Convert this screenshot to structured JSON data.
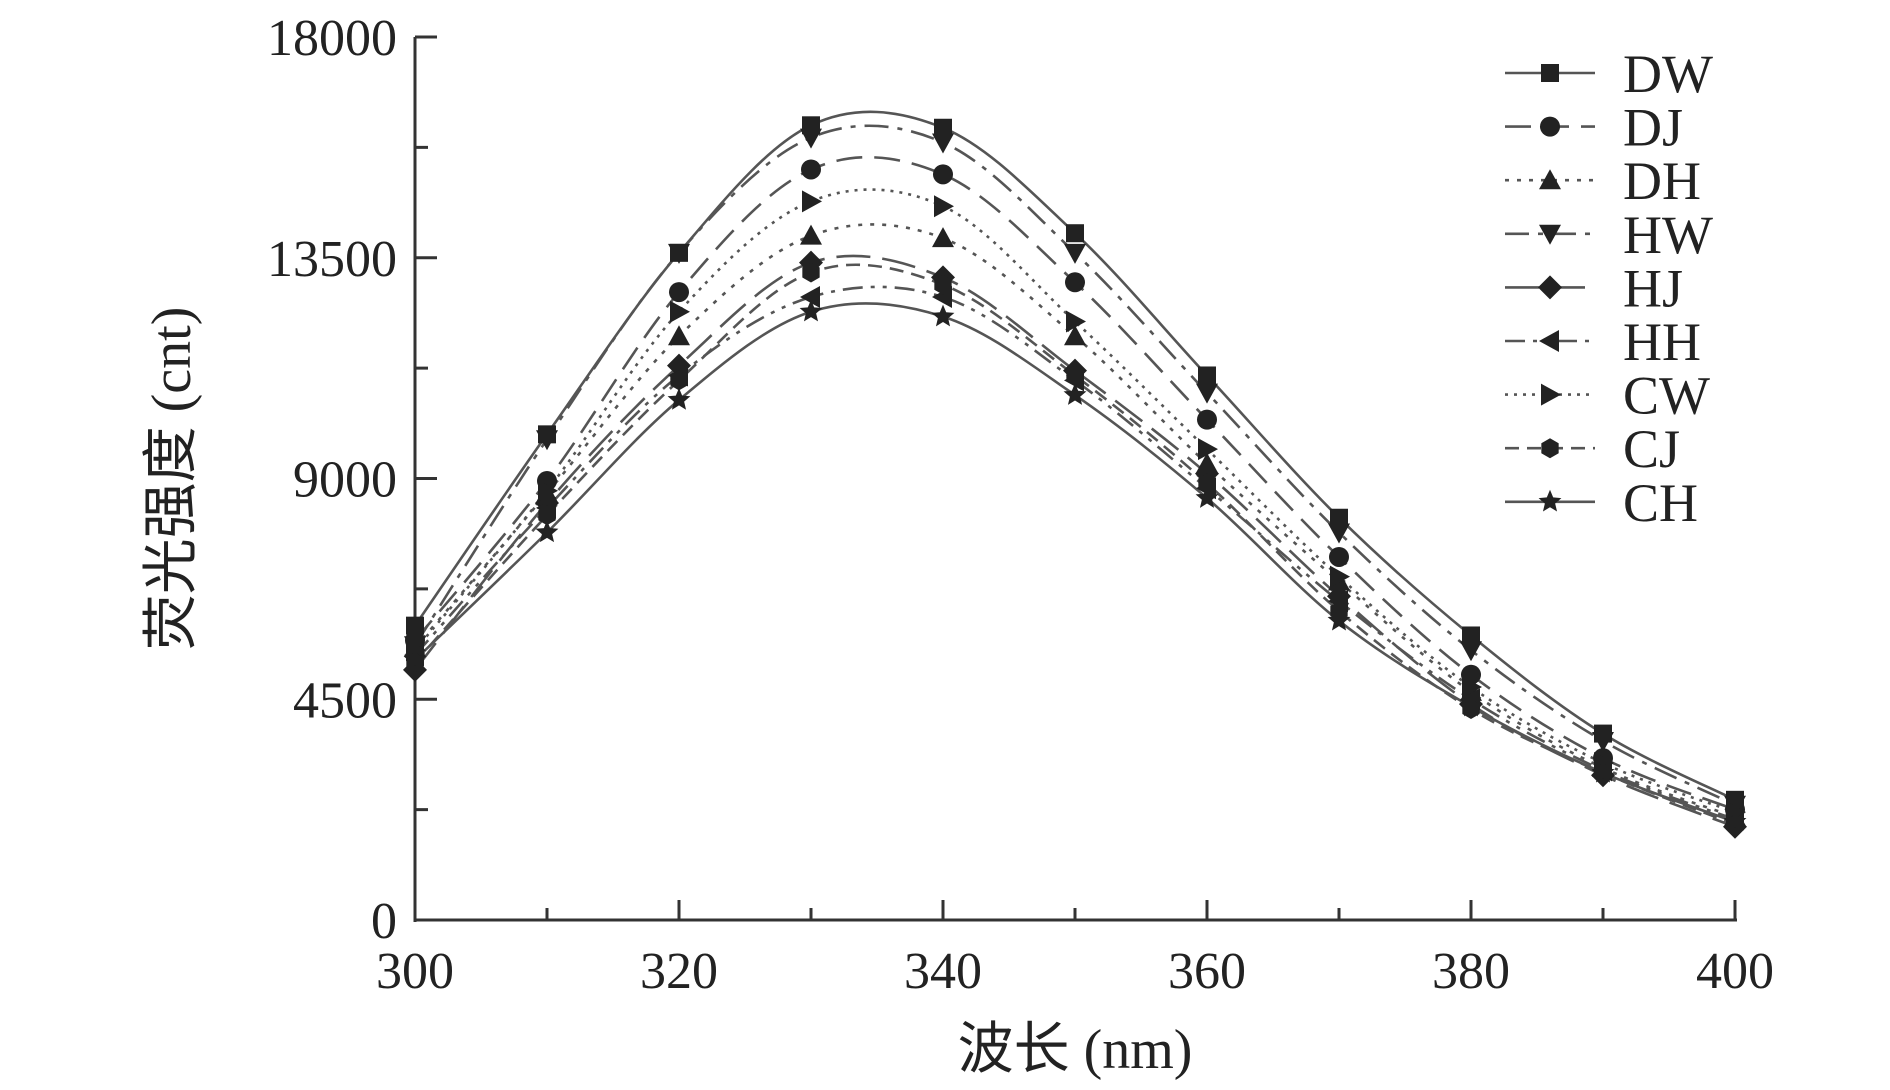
{
  "chart_data": {
    "type": "line",
    "title": "",
    "xlabel": "波长 (nm)",
    "ylabel": "荧光强度 (cnt)",
    "xlim": [
      300,
      400
    ],
    "ylim": [
      0,
      18000
    ],
    "x_ticks": [
      300,
      320,
      340,
      360,
      380,
      400
    ],
    "y_ticks": [
      0,
      4500,
      9000,
      13500,
      18000
    ],
    "x_tick_labels": [
      "300",
      "320",
      "340",
      "360",
      "380",
      "400"
    ],
    "y_tick_labels": [
      "0",
      "4500",
      "9000",
      "13500",
      "18000"
    ],
    "legend_position": "top-right",
    "grid": false,
    "x": [
      300,
      310,
      320,
      330,
      340,
      350,
      360,
      370,
      380,
      390,
      400
    ],
    "series": [
      {
        "name": "DW",
        "marker": "square",
        "dash": "solid",
        "values": [
          6000,
          9900,
          13600,
          16200,
          16150,
          14000,
          11100,
          8200,
          5800,
          3800,
          2450
        ]
      },
      {
        "name": "DJ",
        "marker": "circle",
        "dash": "dash",
        "values": [
          5700,
          8950,
          12800,
          15300,
          15200,
          13000,
          10200,
          7400,
          5000,
          3300,
          2250
        ]
      },
      {
        "name": "DH",
        "marker": "triangle-up",
        "dash": "dot",
        "values": [
          5550,
          8700,
          11900,
          13950,
          13900,
          11900,
          9300,
          6900,
          4650,
          3100,
          2100
        ]
      },
      {
        "name": "HW",
        "marker": "triangle-down",
        "dash": "dashdot",
        "values": [
          5600,
          9800,
          13600,
          15950,
          15850,
          13600,
          10750,
          7900,
          5500,
          3650,
          2350
        ]
      },
      {
        "name": "HJ",
        "marker": "diamond",
        "dash": "longdash",
        "values": [
          5100,
          8500,
          11300,
          13400,
          13100,
          11200,
          9100,
          6600,
          4400,
          2950,
          1900
        ]
      },
      {
        "name": "HH",
        "marker": "triangle-left",
        "dash": "dashdotdot",
        "values": [
          5400,
          8400,
          11100,
          12700,
          12700,
          11000,
          8800,
          6500,
          4500,
          3050,
          2050
        ]
      },
      {
        "name": "CW",
        "marker": "triangle-right",
        "dash": "shortdot",
        "values": [
          5500,
          8750,
          12400,
          14650,
          14550,
          12200,
          9600,
          7000,
          4750,
          3200,
          2200
        ]
      },
      {
        "name": "CJ",
        "marker": "hexagon",
        "dash": "shortdash",
        "values": [
          5250,
          8250,
          11000,
          13200,
          12950,
          11100,
          8900,
          6300,
          4300,
          3000,
          1950
        ]
      },
      {
        "name": "CH",
        "marker": "star",
        "dash": "solid",
        "values": [
          5300,
          7900,
          10600,
          12400,
          12300,
          10700,
          8600,
          6100,
          4350,
          3000,
          2000
        ]
      }
    ]
  }
}
